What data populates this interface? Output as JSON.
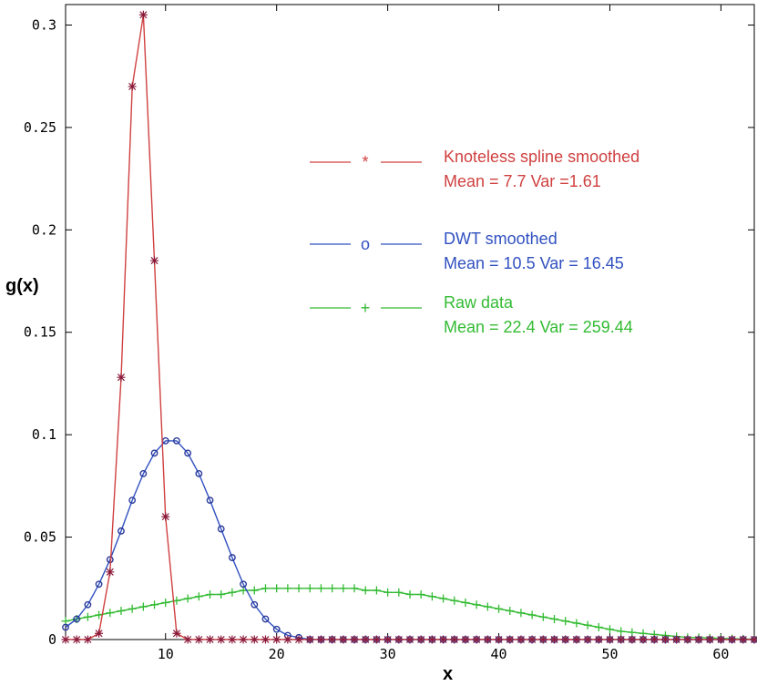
{
  "chart_data": {
    "type": "line",
    "xlabel": "x",
    "ylabel": "g(x)",
    "xlim": [
      1,
      63
    ],
    "ylim": [
      0,
      0.31
    ],
    "xticks": [
      10,
      20,
      30,
      40,
      50,
      60
    ],
    "yticks": [
      0,
      0.05,
      0.1,
      0.15,
      0.2,
      0.25,
      0.3
    ],
    "ytick_labels": [
      "0",
      "0.05",
      "0.1",
      "0.15",
      "0.2",
      "0.25",
      "0.3"
    ],
    "grid": false,
    "legend_position": "top-right",
    "series": [
      {
        "name": "Knoteless spline smoothed",
        "stats": "Mean = 7.7 Var =1.61",
        "legend_marker": "*",
        "color": "#d04040",
        "marker_color": "#8b1a3a",
        "x": [
          1,
          2,
          3,
          4,
          5,
          6,
          7,
          8,
          9,
          10,
          11,
          12,
          13,
          14,
          15,
          16,
          17,
          18,
          19,
          20,
          21,
          22,
          23,
          24,
          25,
          26,
          27,
          28,
          29,
          30,
          31,
          32,
          33,
          34,
          35,
          36,
          37,
          38,
          39,
          40,
          41,
          42,
          43,
          44,
          45,
          46,
          47,
          48,
          49,
          50,
          51,
          52,
          53,
          54,
          55,
          56,
          57,
          58,
          59,
          60,
          61,
          62,
          63
        ],
        "y": [
          0,
          0,
          0,
          0.003,
          0.033,
          0.128,
          0.27,
          0.305,
          0.185,
          0.06,
          0.003,
          0,
          0,
          0,
          0,
          0,
          0,
          0,
          0,
          0,
          0,
          0,
          0,
          0,
          0,
          0,
          0,
          0,
          0,
          0,
          0,
          0,
          0,
          0,
          0,
          0,
          0,
          0,
          0,
          0,
          0,
          0,
          0,
          0,
          0,
          0,
          0,
          0,
          0,
          0,
          0,
          0,
          0,
          0,
          0,
          0,
          0,
          0,
          0,
          0,
          0,
          0,
          0
        ]
      },
      {
        "name": "DWT smoothed",
        "stats": "Mean = 10.5 Var = 16.45",
        "legend_marker": "o",
        "color": "#3050c0",
        "marker_color": "#2a3a9a",
        "x": [
          1,
          2,
          3,
          4,
          5,
          6,
          7,
          8,
          9,
          10,
          11,
          12,
          13,
          14,
          15,
          16,
          17,
          18,
          19,
          20,
          21,
          22,
          23,
          24,
          25,
          26,
          27,
          28,
          29,
          30,
          31,
          32,
          33,
          34,
          35,
          36,
          37,
          38,
          39,
          40,
          41,
          42,
          43,
          44,
          45,
          46,
          47,
          48,
          49,
          50,
          51,
          52,
          53,
          54,
          55,
          56,
          57,
          58,
          59,
          60,
          61,
          62,
          63
        ],
        "y": [
          0.006,
          0.01,
          0.017,
          0.027,
          0.039,
          0.053,
          0.068,
          0.081,
          0.091,
          0.097,
          0.097,
          0.091,
          0.081,
          0.068,
          0.054,
          0.04,
          0.027,
          0.017,
          0.01,
          0.005,
          0.002,
          0.001,
          0,
          0,
          0,
          0,
          0,
          0,
          0,
          0,
          0,
          0,
          0,
          0,
          0,
          0,
          0,
          0,
          0,
          0,
          0,
          0,
          0,
          0,
          0,
          0,
          0,
          0,
          0,
          0,
          0,
          0,
          0,
          0,
          0,
          0,
          0,
          0,
          0,
          0,
          0,
          0,
          0
        ]
      },
      {
        "name": "Raw data",
        "stats": "Mean = 22.4 Var = 259.44",
        "legend_marker": "+",
        "color": "#33bb33",
        "marker_color": "#33bb33",
        "x": [
          1,
          2,
          3,
          4,
          5,
          6,
          7,
          8,
          9,
          10,
          11,
          12,
          13,
          14,
          15,
          16,
          17,
          18,
          19,
          20,
          21,
          22,
          23,
          24,
          25,
          26,
          27,
          28,
          29,
          30,
          31,
          32,
          33,
          34,
          35,
          36,
          37,
          38,
          39,
          40,
          41,
          42,
          43,
          44,
          45,
          46,
          47,
          48,
          49,
          50,
          51,
          52,
          53,
          54,
          55,
          56,
          57,
          58,
          59,
          60,
          61,
          62,
          63
        ],
        "y": [
          0.009,
          0.01,
          0.011,
          0.012,
          0.013,
          0.014,
          0.015,
          0.016,
          0.017,
          0.018,
          0.019,
          0.02,
          0.021,
          0.022,
          0.022,
          0.023,
          0.024,
          0.024,
          0.025,
          0.025,
          0.025,
          0.025,
          0.025,
          0.025,
          0.025,
          0.025,
          0.025,
          0.024,
          0.024,
          0.023,
          0.023,
          0.022,
          0.022,
          0.021,
          0.02,
          0.019,
          0.018,
          0.017,
          0.016,
          0.015,
          0.014,
          0.013,
          0.012,
          0.011,
          0.01,
          0.009,
          0.008,
          0.007,
          0.006,
          0.005,
          0.004,
          0.0035,
          0.003,
          0.0025,
          0.002,
          0.0015,
          0.001,
          0.001,
          0.0008,
          0.0006,
          0.0004,
          0.0003,
          0.0002
        ]
      }
    ]
  }
}
